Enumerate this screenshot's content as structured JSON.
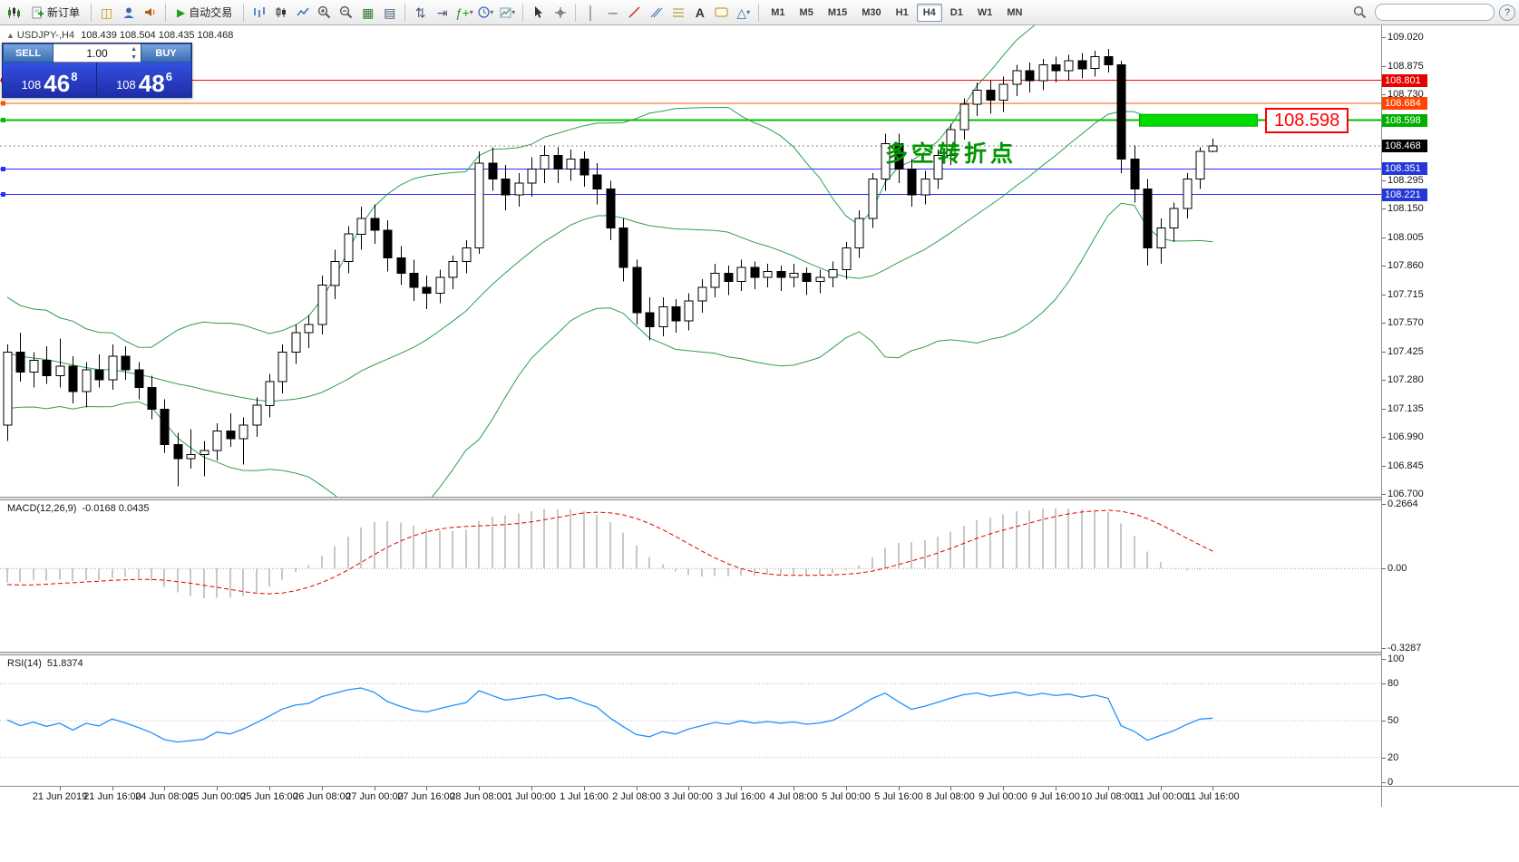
{
  "toolbar": {
    "new_order": "新订单",
    "autotrading": "自动交易",
    "timeframes": [
      "M1",
      "M5",
      "M15",
      "M30",
      "H1",
      "H4",
      "D1",
      "W1",
      "MN"
    ],
    "active_timeframe": "H4",
    "text_tool": "A",
    "indicators_tool": "ƒ+",
    "help": "?"
  },
  "chart": {
    "symbol_header": "USDJPY-,H4",
    "ohlc_header": "108.439 108.504 108.435 108.468",
    "trade_panel": {
      "sell": "SELL",
      "buy": "BUY",
      "lot": "1.00",
      "bid": {
        "figure": "108",
        "pips": "46",
        "point": "8"
      },
      "ask": {
        "figure": "108",
        "pips": "48",
        "point": "6"
      }
    },
    "levels": [
      {
        "text": "108.801",
        "price": 108.801,
        "line_color": "#ff0000",
        "tag_color": "#e60000",
        "width": 1
      },
      {
        "text": "108.684",
        "price": 108.684,
        "line_color": "#ff5500",
        "tag_color": "#ff4500",
        "width": 1
      },
      {
        "text": "108.598",
        "price": 108.598,
        "line_color": "#00c000",
        "tag_color": "#00b000",
        "width": 2
      },
      {
        "text": "108.351",
        "price": 108.351,
        "line_color": "#2d2dff",
        "tag_color": "#2438d8",
        "width": 1
      },
      {
        "text": "108.221",
        "price": 108.221,
        "line_color": "#2d2dff",
        "tag_color": "#2438d8",
        "width": 1
      }
    ],
    "current_price": {
      "text": "108.468",
      "price": 108.468,
      "tag_color": "#000000"
    },
    "price_scale_ticks": [
      "109.020",
      "108.875",
      "108.730",
      "108.295",
      "108.150",
      "108.005",
      "107.860",
      "107.715",
      "107.570",
      "107.425",
      "107.280",
      "107.135",
      "106.990",
      "106.845",
      "106.700"
    ],
    "green_rect": {
      "i1": 86.4,
      "i2": 95.4,
      "price": 108.598,
      "fill": "#00dc00",
      "border": "#00a000"
    },
    "callout_text": "108.598",
    "note_text": "多空转折点",
    "note_color": "#009600"
  },
  "macd": {
    "name": "MACD(12,26,9)",
    "values": "-0.0168 0.0435",
    "scale": [
      {
        "text": "0.2664",
        "value": 0.2664
      },
      {
        "text": "0.00",
        "value": 0
      },
      {
        "text": "-0.3287",
        "value": -0.3287
      }
    ]
  },
  "rsi": {
    "name": "RSI(14)",
    "values": "51.8374",
    "scale": [
      {
        "text": "100",
        "value": 100
      },
      {
        "text": "80",
        "value": 80
      },
      {
        "text": "50",
        "value": 50
      },
      {
        "text": "20",
        "value": 20
      },
      {
        "text": "0",
        "value": 0
      }
    ]
  },
  "chart_data": {
    "type": "candlestick",
    "symbol": "USDJPY-",
    "timeframe": "H4",
    "y_axis": {
      "min": 106.7,
      "max": 109.02,
      "tick_step": 0.145
    },
    "levels": [
      108.801,
      108.684,
      108.598,
      108.351,
      108.221
    ],
    "current_price": 108.468,
    "indicators": [
      {
        "type": "bollinger",
        "period": 20,
        "deviation": 2,
        "color": "#2f9e4f"
      },
      {
        "type": "macd",
        "fast": 12,
        "slow": 26,
        "signal": 9,
        "display": "-0.0168 0.0435",
        "scale": [
          0.2664,
          -0.3287
        ]
      },
      {
        "type": "rsi",
        "period": 14,
        "display": "51.8374",
        "levels": [
          80,
          50,
          20
        ]
      }
    ],
    "time_labels": [
      {
        "i": 4,
        "t": "21 Jun 2019"
      },
      {
        "i": 8,
        "t": "21 Jun 16:00"
      },
      {
        "i": 12,
        "t": "24 Jun 08:00"
      },
      {
        "i": 16,
        "t": "25 Jun 00:00"
      },
      {
        "i": 20,
        "t": "25 Jun 16:00"
      },
      {
        "i": 24,
        "t": "26 Jun 08:00"
      },
      {
        "i": 28,
        "t": "27 Jun 00:00"
      },
      {
        "i": 32,
        "t": "27 Jun 16:00"
      },
      {
        "i": 36,
        "t": "28 Jun 08:00"
      },
      {
        "i": 40,
        "t": "1 Jul 00:00"
      },
      {
        "i": 44,
        "t": "1 Jul 16:00"
      },
      {
        "i": 48,
        "t": "2 Jul 08:00"
      },
      {
        "i": 52,
        "t": "3 Jul 00:00"
      },
      {
        "i": 56,
        "t": "3 Jul 16:00"
      },
      {
        "i": 60,
        "t": "4 Jul 08:00"
      },
      {
        "i": 64,
        "t": "5 Jul 00:00"
      },
      {
        "i": 68,
        "t": "5 Jul 16:00"
      },
      {
        "i": 72,
        "t": "8 Jul 08:00"
      },
      {
        "i": 76,
        "t": "9 Jul 00:00"
      },
      {
        "i": 80,
        "t": "9 Jul 16:00"
      },
      {
        "i": 84,
        "t": "10 Jul 08:00"
      },
      {
        "i": 88,
        "t": "11 Jul 00:00"
      },
      {
        "i": 92,
        "t": "11 Jul 16:00"
      }
    ],
    "warmup_closes": [
      107.55,
      107.6,
      107.65,
      107.7,
      107.62,
      107.68,
      107.58,
      107.64,
      107.55,
      107.6,
      107.52,
      107.58,
      107.5,
      107.55,
      107.48,
      107.52,
      107.45,
      107.5,
      107.42,
      107.48,
      107.6,
      107.68,
      107.55,
      107.45,
      107.62,
      107.52,
      107.58,
      107.48,
      107.42,
      107.55,
      107.5,
      107.4,
      107.3,
      107.22,
      107.15,
      107.25,
      107.32,
      107.25,
      107.3,
      107.38
    ],
    "ohlc": [
      [
        107.05,
        107.46,
        106.97,
        107.42
      ],
      [
        107.42,
        107.52,
        107.27,
        107.32
      ],
      [
        107.32,
        107.42,
        107.24,
        107.38
      ],
      [
        107.38,
        107.45,
        107.26,
        107.3
      ],
      [
        107.3,
        107.49,
        107.24,
        107.35
      ],
      [
        107.35,
        107.4,
        107.16,
        107.22
      ],
      [
        107.22,
        107.37,
        107.14,
        107.33
      ],
      [
        107.33,
        107.41,
        107.24,
        107.28
      ],
      [
        107.28,
        107.46,
        107.23,
        107.4
      ],
      [
        107.4,
        107.45,
        107.28,
        107.33
      ],
      [
        107.33,
        107.37,
        107.18,
        107.24
      ],
      [
        107.24,
        107.3,
        107.08,
        107.13
      ],
      [
        107.13,
        107.18,
        106.91,
        106.95
      ],
      [
        106.95,
        107.01,
        106.74,
        106.88
      ],
      [
        106.88,
        107.03,
        106.83,
        106.9
      ],
      [
        106.9,
        106.97,
        106.79,
        106.92
      ],
      [
        106.92,
        107.06,
        106.87,
        107.02
      ],
      [
        107.02,
        107.11,
        106.94,
        106.98
      ],
      [
        106.98,
        107.09,
        106.85,
        107.05
      ],
      [
        107.05,
        107.19,
        106.99,
        107.15
      ],
      [
        107.15,
        107.31,
        107.09,
        107.27
      ],
      [
        107.27,
        107.46,
        107.21,
        107.42
      ],
      [
        107.42,
        107.56,
        107.36,
        107.52
      ],
      [
        107.52,
        107.61,
        107.44,
        107.56
      ],
      [
        107.56,
        107.81,
        107.51,
        107.76
      ],
      [
        107.76,
        107.94,
        107.69,
        107.88
      ],
      [
        107.88,
        108.06,
        107.82,
        108.02
      ],
      [
        108.02,
        108.16,
        107.94,
        108.1
      ],
      [
        108.1,
        108.17,
        107.97,
        108.04
      ],
      [
        108.04,
        108.09,
        107.83,
        107.9
      ],
      [
        107.9,
        107.96,
        107.76,
        107.82
      ],
      [
        107.82,
        107.89,
        107.68,
        107.75
      ],
      [
        107.75,
        107.81,
        107.64,
        107.72
      ],
      [
        107.72,
        107.84,
        107.67,
        107.8
      ],
      [
        107.8,
        107.91,
        107.74,
        107.88
      ],
      [
        107.88,
        107.99,
        107.82,
        107.95
      ],
      [
        107.95,
        108.44,
        107.92,
        108.38
      ],
      [
        108.38,
        108.46,
        108.24,
        108.3
      ],
      [
        108.3,
        108.37,
        108.14,
        108.22
      ],
      [
        108.22,
        108.33,
        108.16,
        108.28
      ],
      [
        108.28,
        108.41,
        108.21,
        108.35
      ],
      [
        108.35,
        108.47,
        108.28,
        108.42
      ],
      [
        108.42,
        108.46,
        108.28,
        108.35
      ],
      [
        108.35,
        108.45,
        108.29,
        108.4
      ],
      [
        108.4,
        108.44,
        108.26,
        108.32
      ],
      [
        108.32,
        108.38,
        108.17,
        108.25
      ],
      [
        108.25,
        108.29,
        107.99,
        108.05
      ],
      [
        108.05,
        108.1,
        107.78,
        107.85
      ],
      [
        107.85,
        107.89,
        107.56,
        107.62
      ],
      [
        107.62,
        107.7,
        107.48,
        107.55
      ],
      [
        107.55,
        107.7,
        107.5,
        107.65
      ],
      [
        107.65,
        107.69,
        107.52,
        107.58
      ],
      [
        107.58,
        107.72,
        107.53,
        107.68
      ],
      [
        107.68,
        107.79,
        107.62,
        107.75
      ],
      [
        107.75,
        107.87,
        107.7,
        107.82
      ],
      [
        107.82,
        107.86,
        107.71,
        107.78
      ],
      [
        107.78,
        107.89,
        107.73,
        107.85
      ],
      [
        107.85,
        107.88,
        107.74,
        107.8
      ],
      [
        107.8,
        107.87,
        107.75,
        107.83
      ],
      [
        107.83,
        107.86,
        107.73,
        107.8
      ],
      [
        107.8,
        107.87,
        107.75,
        107.82
      ],
      [
        107.82,
        107.85,
        107.71,
        107.78
      ],
      [
        107.78,
        107.84,
        107.72,
        107.8
      ],
      [
        107.8,
        107.88,
        107.75,
        107.84
      ],
      [
        107.84,
        107.98,
        107.79,
        107.95
      ],
      [
        107.95,
        108.14,
        107.9,
        108.1
      ],
      [
        108.1,
        108.33,
        108.05,
        108.3
      ],
      [
        108.3,
        108.53,
        108.24,
        108.48
      ],
      [
        108.48,
        108.53,
        108.28,
        108.35
      ],
      [
        108.35,
        108.4,
        108.16,
        108.22
      ],
      [
        108.22,
        108.34,
        108.17,
        108.3
      ],
      [
        108.3,
        108.45,
        108.25,
        108.42
      ],
      [
        108.42,
        108.58,
        108.37,
        108.55
      ],
      [
        108.55,
        108.71,
        108.5,
        108.68
      ],
      [
        108.68,
        108.79,
        108.62,
        108.75
      ],
      [
        108.75,
        108.8,
        108.63,
        108.7
      ],
      [
        108.7,
        108.82,
        108.64,
        108.78
      ],
      [
        108.78,
        108.88,
        108.72,
        108.85
      ],
      [
        108.85,
        108.89,
        108.74,
        108.8
      ],
      [
        108.8,
        108.91,
        108.75,
        108.88
      ],
      [
        108.88,
        108.92,
        108.79,
        108.85
      ],
      [
        108.85,
        108.93,
        108.8,
        108.9
      ],
      [
        108.9,
        108.94,
        108.81,
        108.86
      ],
      [
        108.86,
        108.95,
        108.82,
        108.92
      ],
      [
        108.92,
        108.96,
        108.84,
        108.88
      ],
      [
        108.88,
        108.9,
        108.33,
        108.4
      ],
      [
        108.4,
        108.47,
        108.18,
        108.25
      ],
      [
        108.25,
        108.3,
        107.86,
        107.95
      ],
      [
        107.95,
        108.1,
        107.87,
        108.05
      ],
      [
        108.05,
        108.18,
        107.98,
        108.15
      ],
      [
        108.15,
        108.33,
        108.1,
        108.3
      ],
      [
        108.3,
        108.46,
        108.25,
        108.44
      ],
      [
        108.439,
        108.504,
        108.435,
        108.468
      ]
    ]
  }
}
